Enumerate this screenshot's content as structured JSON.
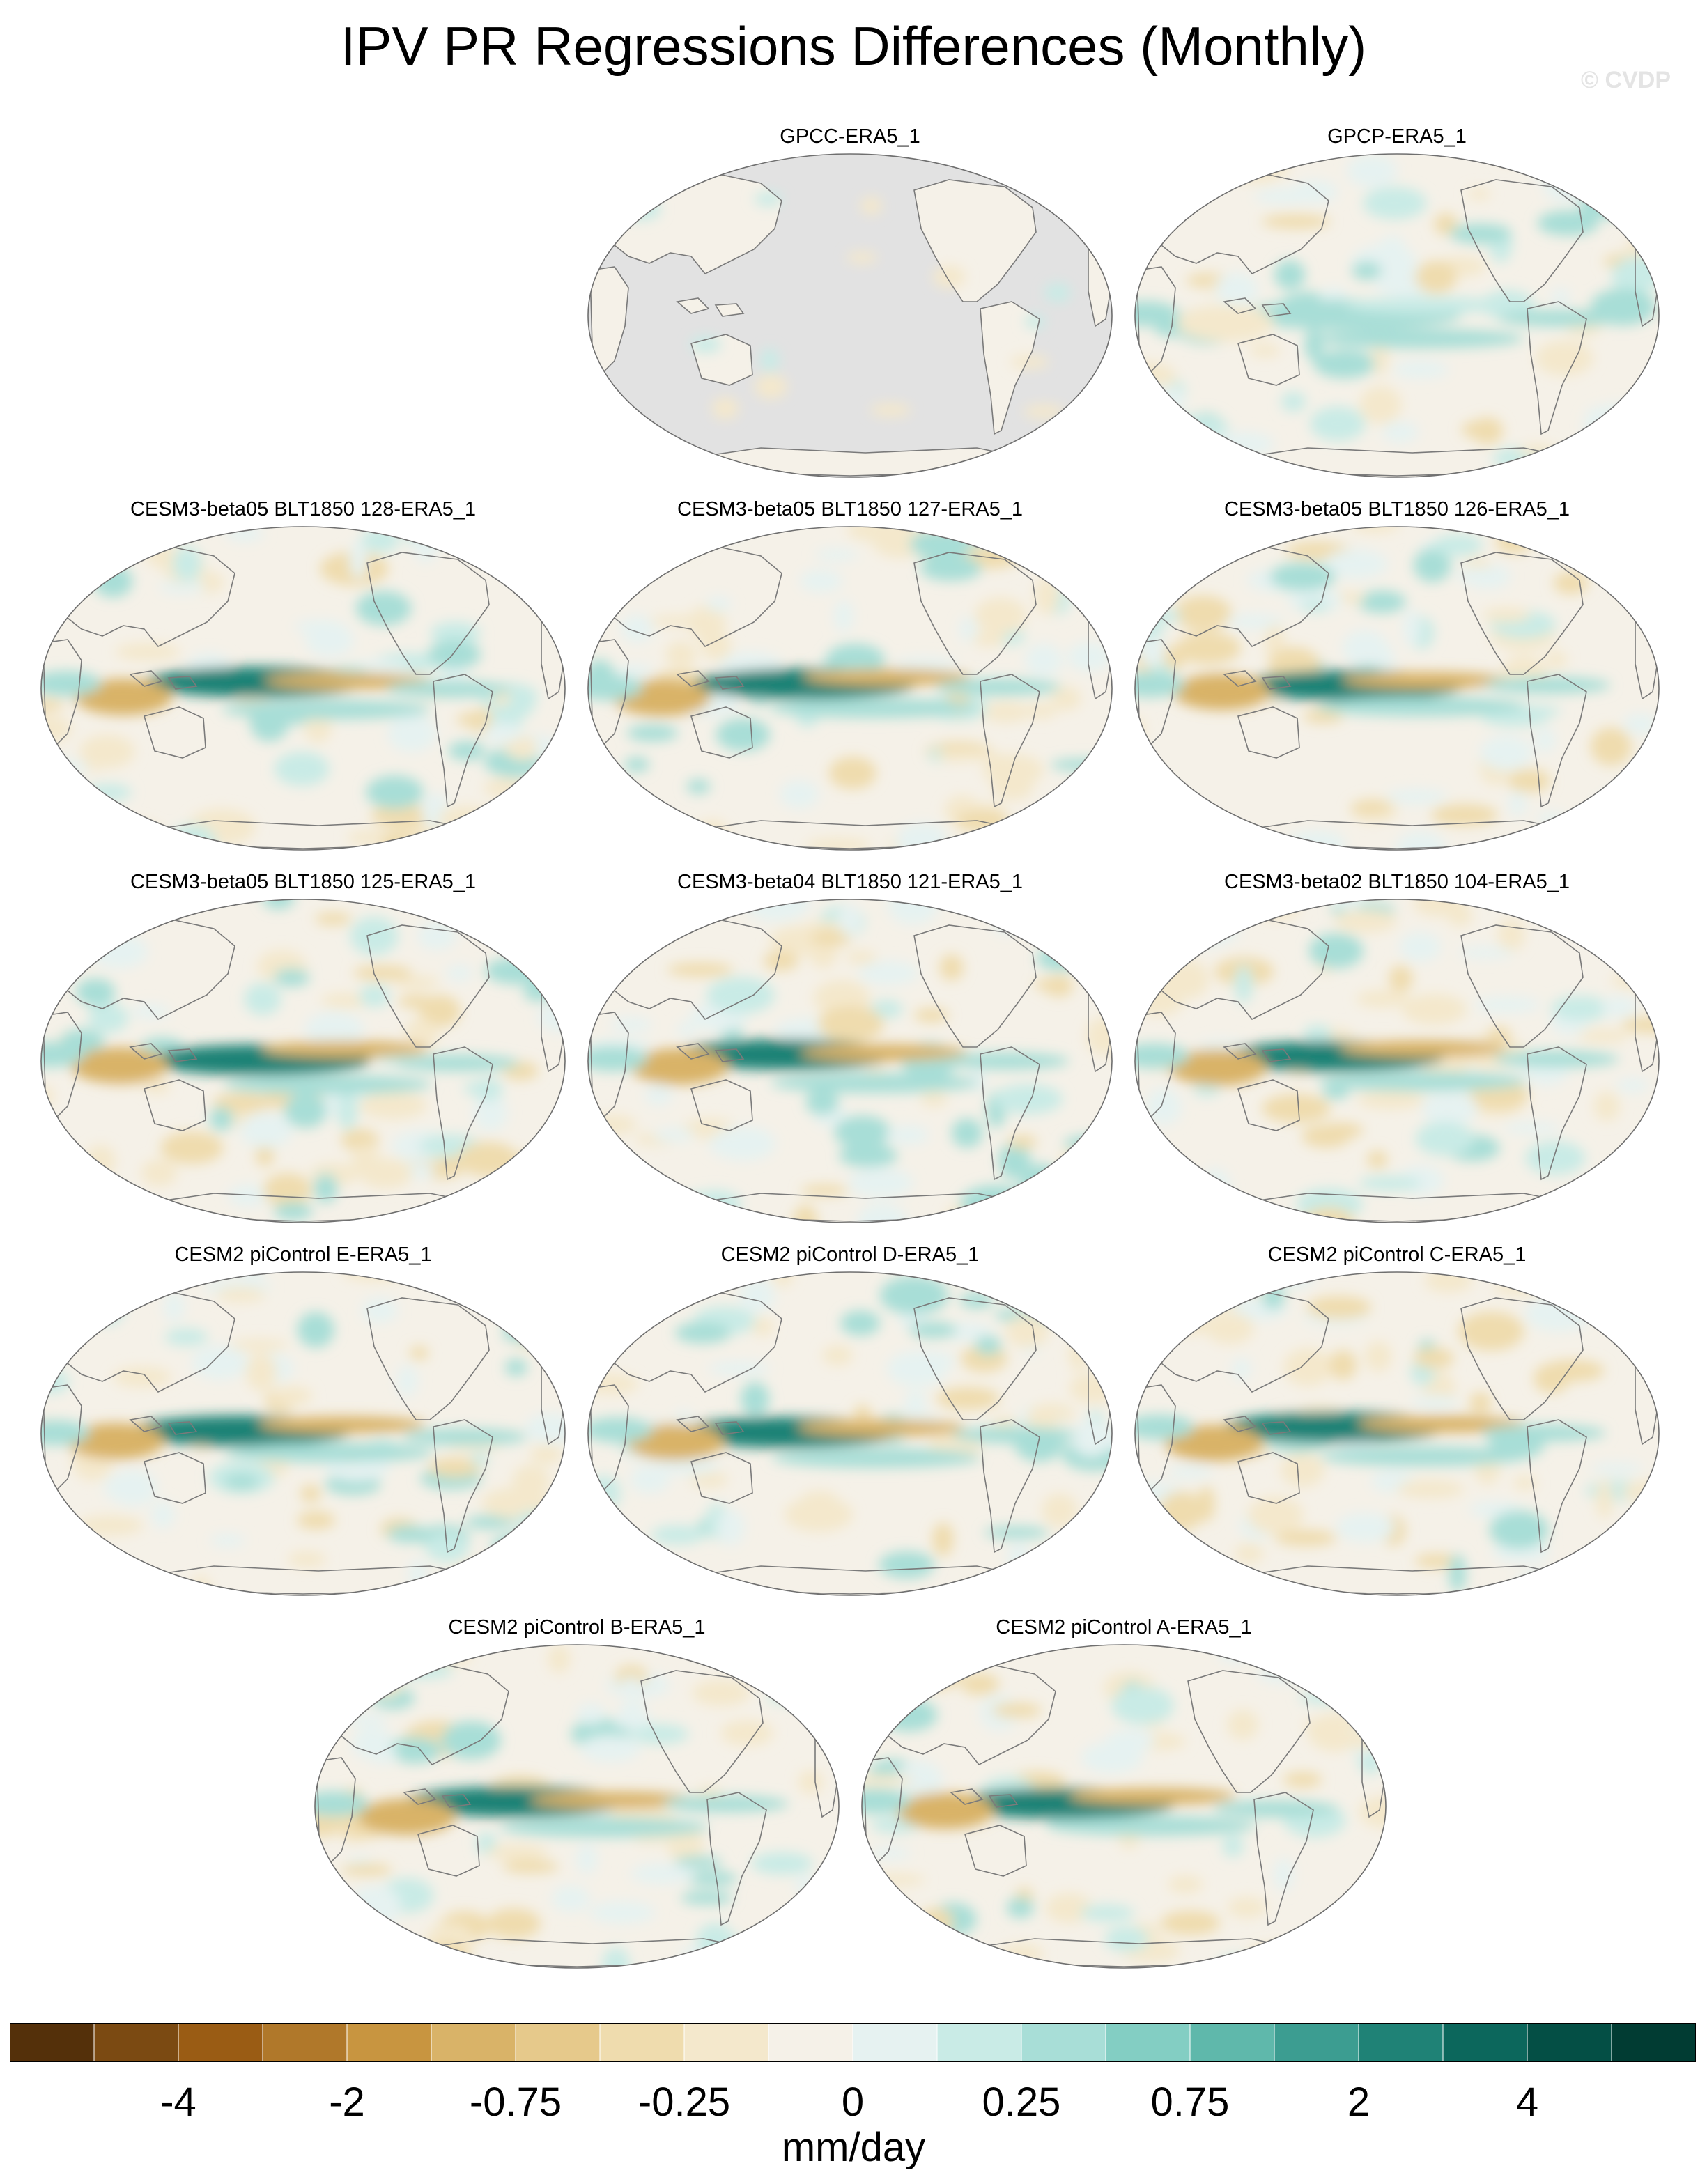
{
  "title": "IPV PR Regressions Differences (Monthly)",
  "watermark": "© CVDP",
  "panels": [
    {
      "label": "GPCC-ERA5_1",
      "ocean_masked": true
    },
    {
      "label": "GPCP-ERA5_1"
    },
    {
      "label": "CESM3-beta05 BLT1850 128-ERA5_1"
    },
    {
      "label": "CESM3-beta05 BLT1850 127-ERA5_1"
    },
    {
      "label": "CESM3-beta05 BLT1850 126-ERA5_1"
    },
    {
      "label": "CESM3-beta05 BLT1850 125-ERA5_1"
    },
    {
      "label": "CESM3-beta04 BLT1850 121-ERA5_1"
    },
    {
      "label": "CESM3-beta02 BLT1850 104-ERA5_1"
    },
    {
      "label": "CESM2 piControl E-ERA5_1"
    },
    {
      "label": "CESM2 piControl D-ERA5_1"
    },
    {
      "label": "CESM2 piControl C-ERA5_1"
    },
    {
      "label": "CESM2 piControl B-ERA5_1"
    },
    {
      "label": "CESM2 piControl A-ERA5_1"
    }
  ],
  "colorbar": {
    "units": "mm/day",
    "colors": [
      "#54300a",
      "#7b4a12",
      "#9a5c14",
      "#b0782a",
      "#c89540",
      "#d9b368",
      "#e6c98b",
      "#efdcae",
      "#f4e8cc",
      "#f5f1e8",
      "#e6f2f1",
      "#c9ebe6",
      "#a8ded7",
      "#83cec3",
      "#5fb8ab",
      "#3c9d91",
      "#1f8276",
      "#0c675c",
      "#044f45",
      "#013c33"
    ],
    "tick_labels": [
      "-4",
      "-2",
      "-0.75",
      "-0.25",
      "0",
      "0.25",
      "0.75",
      "2",
      "4"
    ],
    "ocean_mask_color": "#e2e2e2",
    "coast_color": "#7a7a7a"
  }
}
